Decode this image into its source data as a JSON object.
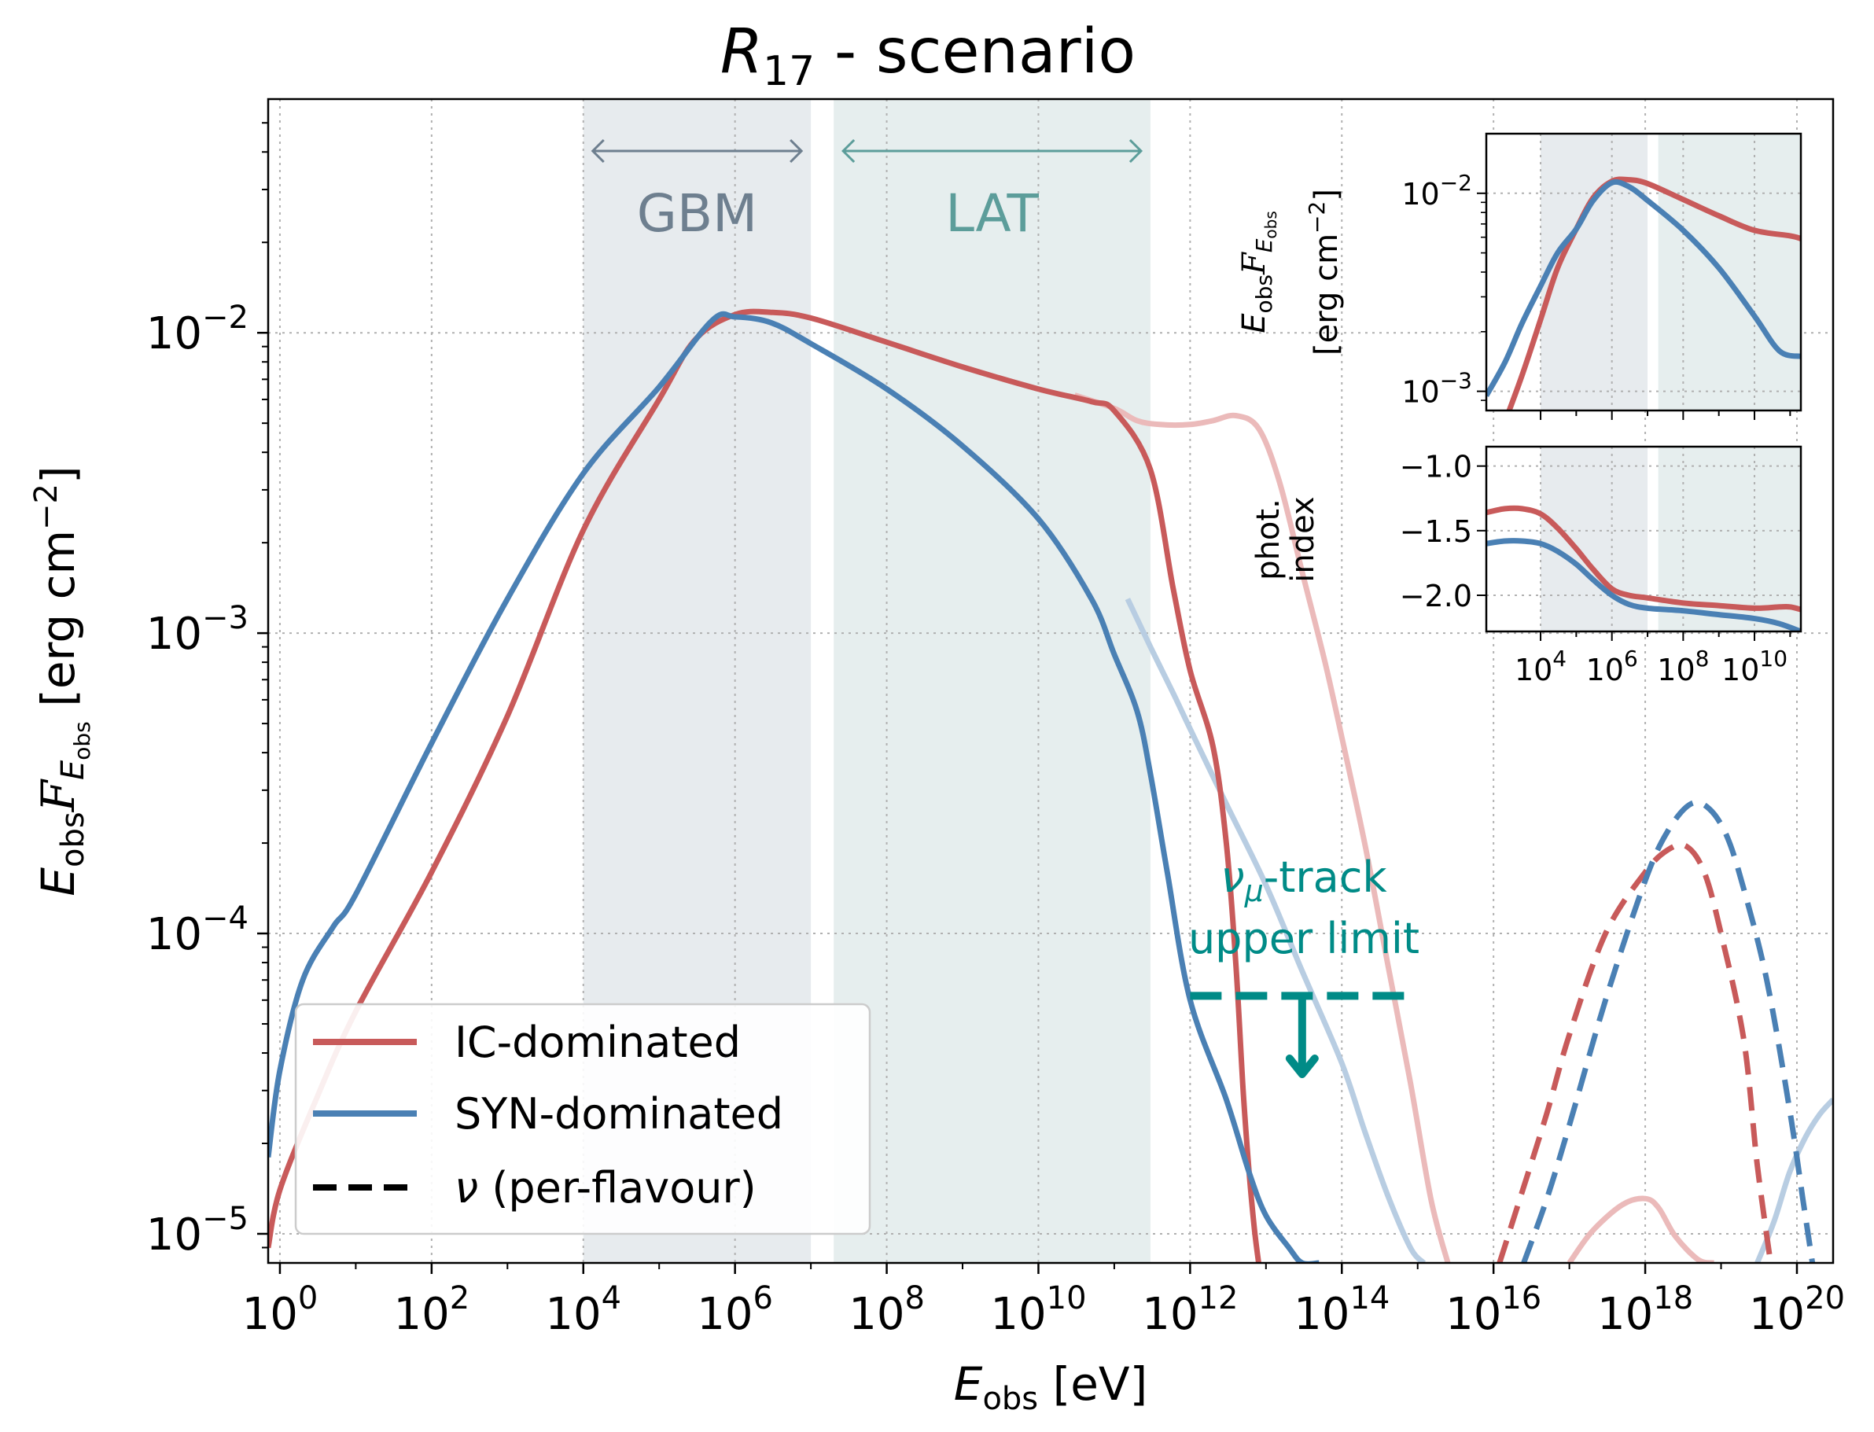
{
  "title": "R17 - scenario",
  "title_parts": {
    "base": "R",
    "sub": "17",
    "rest": " - scenario"
  },
  "xlabel": {
    "base": "E",
    "sub": "obs",
    "rest": " [eV]"
  },
  "ylabel": {
    "base": "E",
    "sub": "obs",
    "mid": "F",
    "msub": "E",
    "msubsub": "obs",
    "rest": "  [erg cm",
    "sup": "−2",
    "close": "]"
  },
  "colors": {
    "ic": "#c85a5a",
    "ic_light": "#ebbaba",
    "syn": "#4a80b4",
    "syn_light": "#b8cde2",
    "gbm_band": "#e7ebee",
    "lat_band": "#e6eeee",
    "gbm_text": "#6e7f8f",
    "lat_text": "#5c9d9a",
    "nu_limit": "#008b87",
    "grid": "#b0b0b0"
  },
  "bands": {
    "gbm": {
      "label": "GBM",
      "from": 10000,
      "to": 10000000
    },
    "lat": {
      "label": "LAT",
      "from": 20000000,
      "to": 300000000000
    }
  },
  "annotation": {
    "line1_pre": "ν",
    "line1_sub": "μ",
    "line1_post": "-track",
    "line2": "upper limit",
    "x_from": 1000000000000.0,
    "x_to": 1000000000000000.0,
    "y": 6.2e-05,
    "arrow_x": 30000000000000.0,
    "arrow_to": 3.4e-05
  },
  "legend": {
    "location": "lower-left",
    "entries": [
      {
        "label": "IC-dominated",
        "style": "solid",
        "color_key": "ic"
      },
      {
        "label": "SYN-dominated",
        "style": "solid",
        "color_key": "syn"
      },
      {
        "label_pre": "ν",
        "label_post": " (per-flavour)",
        "style": "dashed",
        "color_key": "black"
      }
    ]
  },
  "chart_data": [
    {
      "id": "main",
      "type": "line",
      "xscale": "log",
      "yscale": "log",
      "xlim": [
        0.7,
        3e+20
      ],
      "ylim": [
        8e-06,
        0.06
      ],
      "grid": true,
      "xticks": [
        {
          "value": 1,
          "base": "10",
          "exp": "0"
        },
        {
          "value": 100,
          "base": "10",
          "exp": "2"
        },
        {
          "value": 10000,
          "base": "10",
          "exp": "4"
        },
        {
          "value": 1000000,
          "base": "10",
          "exp": "6"
        },
        {
          "value": 100000000,
          "base": "10",
          "exp": "8"
        },
        {
          "value": 10000000000.0,
          "base": "10",
          "exp": "10"
        },
        {
          "value": 1000000000000.0,
          "base": "10",
          "exp": "12"
        },
        {
          "value": 100000000000000.0,
          "base": "10",
          "exp": "14"
        },
        {
          "value": 1e+16,
          "base": "10",
          "exp": "16"
        },
        {
          "value": 1e+18,
          "base": "10",
          "exp": "18"
        },
        {
          "value": 1e+20,
          "base": "10",
          "exp": "20"
        }
      ],
      "yticks": [
        {
          "value": 1e-05,
          "base": "10",
          "exp": "−5"
        },
        {
          "value": 0.0001,
          "base": "10",
          "exp": "−4"
        },
        {
          "value": 0.001,
          "base": "10",
          "exp": "−3"
        },
        {
          "value": 0.01,
          "base": "10",
          "exp": "−2"
        }
      ],
      "series": [
        {
          "name": "IC-dominated",
          "kind": "photon",
          "color_key": "ic",
          "style": "solid",
          "x": [
            0.7,
            1,
            3,
            10,
            100,
            1000,
            10000,
            100000,
            300000,
            1000000,
            3000000,
            10000000,
            100000000,
            1000000000.0,
            10000000000.0,
            50000000000.0,
            100000000000.0,
            300000000000.0,
            600000000000.0,
            1000000000000.0,
            2000000000000.0,
            3000000000000.0,
            4000000000000.0,
            5000000000000.0,
            6000000000000.0,
            7000000000000.0,
            8000000000000.0
          ],
          "y": [
            9e-06,
            1.4e-05,
            2.8e-05,
            5.5e-05,
            0.00016,
            0.00053,
            0.0022,
            0.006,
            0.0095,
            0.0115,
            0.0117,
            0.0112,
            0.0093,
            0.0077,
            0.0065,
            0.0059,
            0.0055,
            0.0035,
            0.0014,
            0.00075,
            0.00042,
            0.0002,
            8e-05,
            3e-05,
            1.6e-05,
            1.05e-05,
            8e-06
          ]
        },
        {
          "name": "SYN-dominated",
          "kind": "photon",
          "color_key": "syn",
          "style": "solid",
          "x": [
            0.7,
            1,
            2,
            5,
            10,
            100,
            1000,
            10000,
            100000,
            500000,
            1000000,
            3000000,
            10000000,
            100000000,
            1000000000.0,
            10000000000.0,
            50000000000.0,
            100000000000.0,
            200000000000.0,
            300000000000.0,
            500000000000.0,
            1000000000000.0,
            3000000000000.0,
            6000000000000.0,
            10000000000000.0,
            20000000000000.0,
            30000000000000.0,
            50000000000000.0
          ],
          "y": [
            1.8e-05,
            3.5e-05,
            7e-05,
            0.000105,
            0.000135,
            0.00043,
            0.0013,
            0.0034,
            0.0066,
            0.011,
            0.0113,
            0.0108,
            0.0092,
            0.0065,
            0.0042,
            0.0024,
            0.0013,
            0.00085,
            0.00055,
            0.00034,
            0.00016,
            6e-05,
            2.8e-05,
            1.6e-05,
            1.15e-05,
            9e-06,
            8e-06,
            8e-06
          ]
        },
        {
          "name": "IC-dominated (unattenuated)",
          "kind": "photon-light",
          "color_key": "ic_light",
          "style": "solid",
          "x": [
            30000000000.0,
            100000000000.0,
            200000000000.0,
            400000000000.0,
            1000000000000.0,
            2000000000000.0,
            4000000000000.0,
            8000000000000.0,
            15000000000000.0,
            30000000000000.0,
            60000000000000.0,
            100000000000000.0,
            200000000000000.0,
            400000000000000.0,
            800000000000000.0,
            1500000000000000.0,
            2500000000000000.0
          ],
          "y": [
            0.0062,
            0.0056,
            0.0051,
            0.00495,
            0.00495,
            0.0051,
            0.0053,
            0.0048,
            0.0032,
            0.0016,
            0.0008,
            0.00045,
            0.0002,
            8e-05,
            3.2e-05,
            1.3e-05,
            8e-06
          ]
        },
        {
          "name": "IC-dominated (unattenuated, tail)",
          "kind": "photon-light",
          "color_key": "ic_light",
          "style": "solid",
          "x": [
            1e+17,
            2e+17,
            5e+17,
            1e+18,
            1.5e+18,
            2.5e+18,
            5e+18,
            8e+18
          ],
          "y": [
            8e-06,
            1.02e-05,
            1.25e-05,
            1.31e-05,
            1.22e-05,
            9.8e-06,
            8.2e-06,
            8e-06
          ]
        },
        {
          "name": "SYN-dominated (unattenuated)",
          "kind": "photon-light",
          "color_key": "syn_light",
          "style": "solid",
          "x": [
            150000000000.0,
            300000000000.0,
            600000000000.0,
            1000000000000.0,
            3000000000000.0,
            10000000000000.0,
            30000000000000.0,
            100000000000000.0,
            200000000000000.0,
            400000000000000.0,
            800000000000000.0,
            1200000000000000.0
          ],
          "y": [
            0.0013,
            0.0009,
            0.00063,
            0.00048,
            0.00027,
            0.000145,
            7.5e-05,
            3.7e-05,
            2.2e-05,
            1.35e-05,
            9e-06,
            8e-06
          ]
        },
        {
          "name": "SYN-dominated (unattenuated, tail)",
          "kind": "photon-light",
          "color_key": "syn_light",
          "style": "solid",
          "x": [
            3e+19,
            5e+19,
            8e+19,
            1.3e+20,
            2e+20,
            3e+20
          ],
          "y": [
            8e-06,
            1.1e-05,
            1.6e-05,
            2.1e-05,
            2.5e-05,
            2.8e-05
          ]
        },
        {
          "name": "ν IC-dominated",
          "kind": "neutrino",
          "color_key": "ic",
          "style": "dashed",
          "x": [
            1.2e+16,
            2e+16,
            5e+16,
            1e+17,
            3e+17,
            1e+18,
            2e+18,
            3.5e+18,
            6e+18,
            1e+19,
            2e+19,
            3e+19,
            4.5e+19
          ],
          "y": [
            8e-06,
            1.2e-05,
            2.5e-05,
            4.6e-05,
            0.0001,
            0.00016,
            0.00019,
            0.000195,
            0.00016,
            0.0001,
            4.4e-05,
            1.7e-05,
            8e-06
          ]
        },
        {
          "name": "ν SYN-dominated",
          "kind": "neutrino",
          "color_key": "syn",
          "style": "dashed",
          "x": [
            2.5e+16,
            5e+16,
            1e+17,
            3e+17,
            1e+18,
            2e+18,
            4e+18,
            7e+18,
            1.2e+19,
            2e+19,
            4e+19,
            8e+19,
            1.2e+20,
            1.6e+20
          ],
          "y": [
            8e-06,
            1.3e-05,
            2.3e-05,
            6e-05,
            0.00015,
            0.00022,
            0.00027,
            0.00026,
            0.00021,
            0.00014,
            7e-05,
            2.6e-05,
            1.3e-05,
            8e-06
          ]
        }
      ]
    },
    {
      "id": "inset-flux",
      "type": "line",
      "xscale": "log",
      "yscale": "log",
      "xlim": [
        300,
        200000000000.0
      ],
      "ylim": [
        0.0008,
        0.02
      ],
      "ylabel_line1": {
        "base": "E",
        "sub": "obs",
        "mid": "F",
        "msub": "E",
        "msubsub": "obs"
      },
      "ylabel_line2": {
        "pre": "[erg cm",
        "sup": "−2",
        "post": "]"
      },
      "yticks": [
        {
          "value": 0.01,
          "base": "10",
          "exp": "−2"
        },
        {
          "value": 0.001,
          "base": "10",
          "exp": "−3"
        }
      ],
      "series": [
        {
          "name": "IC-dominated",
          "color_key": "ic",
          "x": [
            1000,
            3000,
            10000,
            30000,
            100000,
            300000,
            1000000,
            3000000,
            10000000,
            100000000,
            1000000000.0,
            10000000000.0,
            100000000000.0,
            200000000000.0
          ],
          "y": [
            0.0007,
            0.0012,
            0.0023,
            0.0042,
            0.0066,
            0.0095,
            0.0115,
            0.0117,
            0.0112,
            0.0093,
            0.0077,
            0.0065,
            0.0061,
            0.0059
          ]
        },
        {
          "name": "SYN-dominated",
          "color_key": "syn",
          "x": [
            300,
            1000,
            3000,
            10000,
            30000,
            100000,
            300000,
            1000000,
            3000000,
            10000000,
            100000000,
            1000000000.0,
            10000000000.0,
            50000000000.0,
            200000000000.0
          ],
          "y": [
            0.00095,
            0.0014,
            0.0022,
            0.0034,
            0.005,
            0.0066,
            0.0092,
            0.0113,
            0.0108,
            0.0092,
            0.0065,
            0.0042,
            0.0024,
            0.0016,
            0.0015
          ]
        }
      ]
    },
    {
      "id": "inset-index",
      "type": "line",
      "xscale": "log",
      "yscale": "linear",
      "xlim": [
        300,
        200000000000.0
      ],
      "ylim": [
        -2.28,
        -0.85
      ],
      "ylabel_line1": "phot.",
      "ylabel_line2": "index",
      "xticks": [
        {
          "value": 10000,
          "base": "10",
          "exp": "4"
        },
        {
          "value": 1000000,
          "base": "10",
          "exp": "6"
        },
        {
          "value": 100000000,
          "base": "10",
          "exp": "8"
        },
        {
          "value": 10000000000.0,
          "base": "10",
          "exp": "10"
        }
      ],
      "yticks": [
        {
          "value": -1.0,
          "label": "−1.0"
        },
        {
          "value": -1.5,
          "label": "−1.5"
        },
        {
          "value": -2.0,
          "label": "−2.0"
        }
      ],
      "series": [
        {
          "name": "IC-dominated",
          "color_key": "ic",
          "x": [
            300,
            1000,
            3000,
            10000,
            30000,
            100000,
            300000,
            1000000,
            3000000,
            10000000,
            100000000,
            1000000000.0,
            10000000000.0,
            50000000000.0,
            100000000000.0,
            200000000000.0
          ],
          "y": [
            -1.36,
            -1.33,
            -1.33,
            -1.37,
            -1.48,
            -1.64,
            -1.8,
            -1.95,
            -2.0,
            -2.02,
            -2.06,
            -2.08,
            -2.1,
            -2.09,
            -2.09,
            -2.11
          ]
        },
        {
          "name": "SYN-dominated",
          "color_key": "syn",
          "x": [
            300,
            1000,
            3000,
            10000,
            30000,
            100000,
            300000,
            1000000,
            3000000,
            10000000,
            100000000,
            1000000000.0,
            10000000000.0,
            50000000000.0,
            200000000000.0
          ],
          "y": [
            -1.6,
            -1.58,
            -1.58,
            -1.6,
            -1.66,
            -1.76,
            -1.88,
            -2.0,
            -2.07,
            -2.1,
            -2.12,
            -2.15,
            -2.18,
            -2.22,
            -2.28
          ]
        }
      ]
    }
  ]
}
